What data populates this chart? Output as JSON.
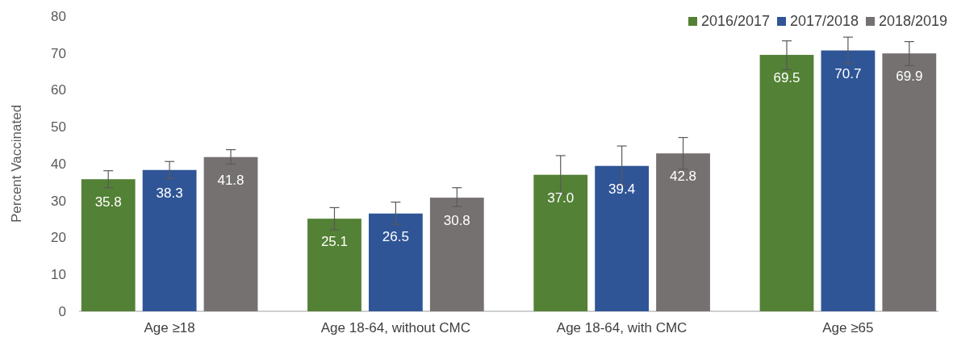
{
  "chart_data": {
    "type": "bar",
    "ylabel": "Percent Vaccinated",
    "categories": [
      "Age ≥18",
      "Age 18-64, without CMC",
      "Age 18-64, with CMC",
      "Age ≥65"
    ],
    "series": [
      {
        "name": "2016/2017",
        "color": "#538135",
        "values": [
          35.8,
          25.1,
          37.0,
          69.5
        ],
        "value_labels": [
          "35.8",
          "25.1",
          "37.0",
          "69.5"
        ],
        "errors": [
          [
            33.5,
            38.1
          ],
          [
            22.1,
            28.1
          ],
          [
            31.8,
            42.2
          ],
          [
            65.5,
            73.3
          ]
        ]
      },
      {
        "name": "2017/2018",
        "color": "#2f5597",
        "values": [
          38.3,
          26.5,
          39.4,
          70.7
        ],
        "value_labels": [
          "38.3",
          "26.5",
          "39.4",
          "70.7"
        ],
        "errors": [
          [
            36.0,
            40.6
          ],
          [
            23.6,
            29.6
          ],
          [
            34.1,
            44.8
          ],
          [
            67.1,
            74.3
          ]
        ]
      },
      {
        "name": "2018/2019",
        "color": "#767171",
        "values": [
          41.8,
          30.8,
          42.8,
          69.9
        ],
        "value_labels": [
          "41.8",
          "30.8",
          "42.8",
          "69.9"
        ],
        "errors": [
          [
            39.9,
            43.8
          ],
          [
            28.4,
            33.5
          ],
          [
            38.5,
            47.1
          ],
          [
            66.6,
            73.1
          ]
        ]
      }
    ],
    "ylim": [
      0,
      80
    ],
    "yticks": [
      0,
      10,
      20,
      30,
      40,
      50,
      60,
      70,
      80
    ],
    "legend": "top right",
    "grid": false
  }
}
